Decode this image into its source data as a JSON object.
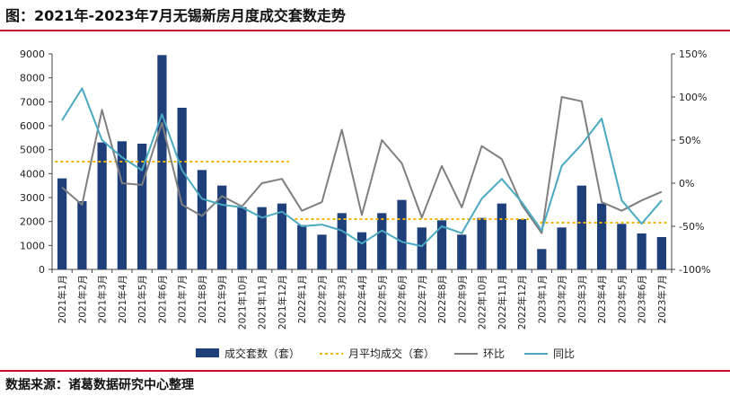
{
  "title": "图：2021年-2023年7月无锡新房月度成交套数走势",
  "source": "数据来源：诸葛数据研究中心整理",
  "chart_data": {
    "type": "bar",
    "categories": [
      "2021年1月",
      "2021年2月",
      "2021年3月",
      "2021年4月",
      "2021年5月",
      "2021年6月",
      "2021年7月",
      "2021年8月",
      "2021年9月",
      "2021年10月",
      "2021年11月",
      "2021年12月",
      "2022年1月",
      "2022年2月",
      "2022年3月",
      "2022年4月",
      "2022年5月",
      "2022年6月",
      "2022年7月",
      "2022年8月",
      "2022年9月",
      "2022年10月",
      "2022年11月",
      "2022年12月",
      "2023年1月",
      "2023年2月",
      "2023年3月",
      "2023年4月",
      "2023年5月",
      "2023年6月",
      "2023年7月"
    ],
    "y_left": {
      "min": 0,
      "max": 9000,
      "step": 1000,
      "ticks": [
        "0",
        "1000",
        "2000",
        "3000",
        "4000",
        "5000",
        "6000",
        "7000",
        "8000",
        "9000"
      ]
    },
    "y_right": {
      "min": -100,
      "max": 150,
      "step": 50,
      "ticks": [
        "-100%",
        "-50%",
        "0%",
        "50%",
        "100%",
        "150%"
      ]
    },
    "series": [
      {
        "name": "成交套数（套）",
        "kind": "bar",
        "axis": "left",
        "color": "#1f3f7a",
        "values": [
          3800,
          2850,
          5300,
          5350,
          5250,
          8950,
          6750,
          4150,
          3500,
          2600,
          2600,
          2750,
          1850,
          1450,
          2350,
          1550,
          2350,
          2900,
          1750,
          2050,
          1450,
          2150,
          2750,
          2100,
          850,
          1750,
          3500,
          2750,
          1900,
          1500,
          1350
        ]
      },
      {
        "name": "月平均成交（套）",
        "kind": "dashed",
        "axis": "left",
        "color": "#f2b400",
        "segments": [
          {
            "from": 0,
            "to": 11,
            "value": 4500
          },
          {
            "from": 12,
            "to": 23,
            "value": 2100
          },
          {
            "from": 24,
            "to": 30,
            "value": 1950
          }
        ]
      },
      {
        "name": "环比",
        "kind": "line",
        "axis": "right",
        "color": "#7f7f7f",
        "values": [
          -5,
          -25,
          85,
          0,
          -2,
          70,
          -25,
          -38,
          -15,
          -27,
          0,
          5,
          -32,
          -22,
          62,
          -37,
          50,
          23,
          -40,
          20,
          -28,
          43,
          28,
          -25,
          -58,
          100,
          95,
          -22,
          -32,
          -20,
          -10
        ]
      },
      {
        "name": "同比",
        "kind": "line",
        "axis": "right",
        "color": "#4aa9c0",
        "values": [
          73,
          110,
          50,
          30,
          15,
          80,
          15,
          -18,
          -25,
          -28,
          -40,
          -33,
          -50,
          -48,
          -55,
          -70,
          -55,
          -68,
          -73,
          -50,
          -58,
          -18,
          5,
          -22,
          -55,
          20,
          45,
          75,
          -20,
          -47,
          -20
        ]
      }
    ]
  }
}
